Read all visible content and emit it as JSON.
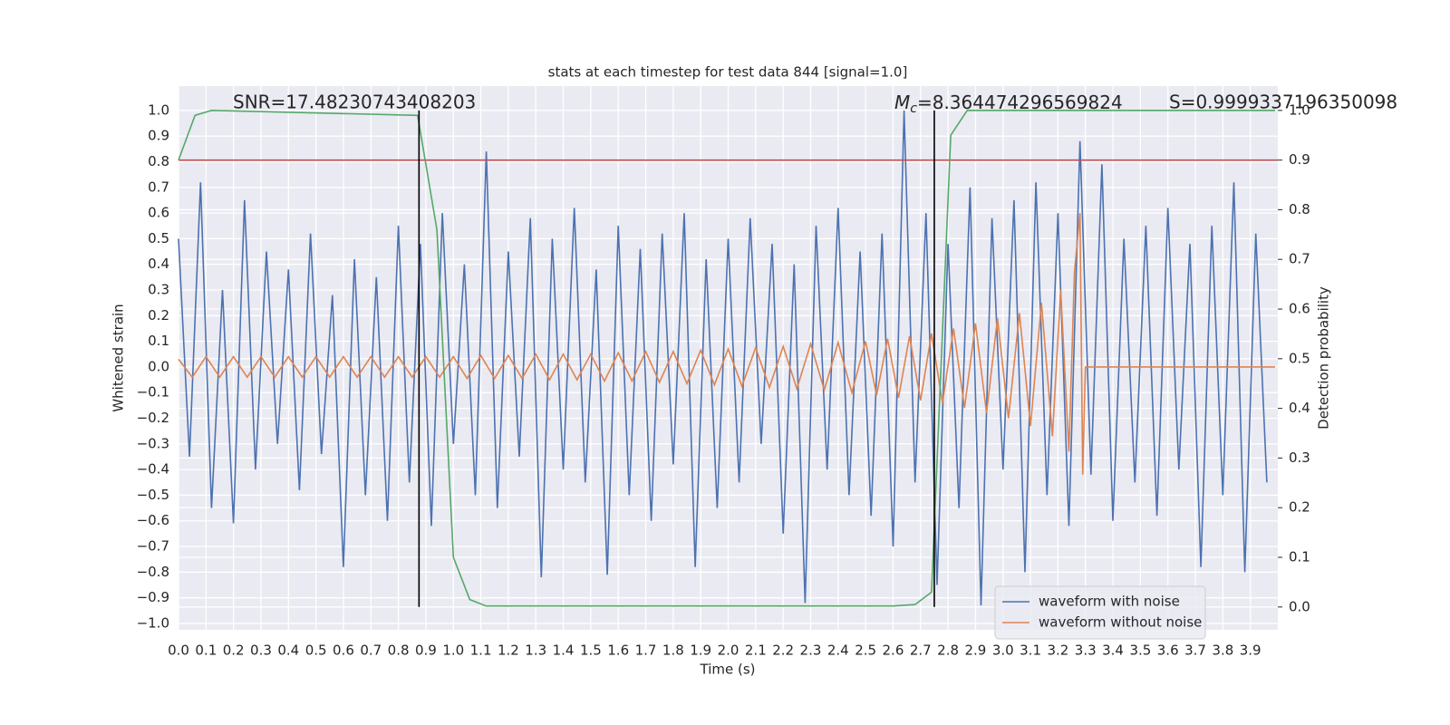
{
  "chart_data": {
    "type": "line",
    "title": "stats at each timestep for test data 844 [signal=1.0]",
    "xlabel": "Time (s)",
    "ylabel": "Whitened strain",
    "y2label": "Detection probability",
    "grid": true,
    "legend": "lower right",
    "xlim": [
      0,
      4.0
    ],
    "ylim": [
      -1.025,
      1.095
    ],
    "y2lim": [
      -0.046,
      1.049
    ],
    "xticks": [
      {
        "value": 0,
        "label": "0.0"
      },
      {
        "value": 0.1,
        "label": "0.1"
      },
      {
        "value": 0.2,
        "label": "0.2"
      },
      {
        "value": 0.3,
        "label": "0.3"
      },
      {
        "value": 0.4,
        "label": "0.4"
      },
      {
        "value": 0.5,
        "label": "0.5"
      },
      {
        "value": 0.6,
        "label": "0.6"
      },
      {
        "value": 0.7,
        "label": "0.7"
      },
      {
        "value": 0.8,
        "label": "0.8"
      },
      {
        "value": 0.9,
        "label": "0.9"
      },
      {
        "value": 1,
        "label": "1.0"
      },
      {
        "value": 1.1,
        "label": "1.1"
      },
      {
        "value": 1.2,
        "label": "1.2"
      },
      {
        "value": 1.3,
        "label": "1.3"
      },
      {
        "value": 1.4,
        "label": "1.4"
      },
      {
        "value": 1.5,
        "label": "1.5"
      },
      {
        "value": 1.6,
        "label": "1.6"
      },
      {
        "value": 1.7,
        "label": "1.7"
      },
      {
        "value": 1.8,
        "label": "1.8"
      },
      {
        "value": 1.9,
        "label": "1.9"
      },
      {
        "value": 2,
        "label": "2.0"
      },
      {
        "value": 2.1,
        "label": "2.1"
      },
      {
        "value": 2.2,
        "label": "2.2"
      },
      {
        "value": 2.3,
        "label": "2.3"
      },
      {
        "value": 2.4,
        "label": "2.4"
      },
      {
        "value": 2.5,
        "label": "2.5"
      },
      {
        "value": 2.6,
        "label": "2.6"
      },
      {
        "value": 2.7,
        "label": "2.7"
      },
      {
        "value": 2.8,
        "label": "2.8"
      },
      {
        "value": 2.9,
        "label": "2.9"
      },
      {
        "value": 3,
        "label": "3.0"
      },
      {
        "value": 3.1,
        "label": "3.1"
      },
      {
        "value": 3.2,
        "label": "3.2"
      },
      {
        "value": 3.3,
        "label": "3.3"
      },
      {
        "value": 3.4,
        "label": "3.4"
      },
      {
        "value": 3.5,
        "label": "3.5"
      },
      {
        "value": 3.6,
        "label": "3.6"
      },
      {
        "value": 3.7,
        "label": "3.7"
      },
      {
        "value": 3.8,
        "label": "3.8"
      },
      {
        "value": 3.9,
        "label": "3.9"
      }
    ],
    "yticks": [
      {
        "value": 1,
        "label": "1.0"
      },
      {
        "value": 0.9,
        "label": "0.9"
      },
      {
        "value": 0.8,
        "label": "0.8"
      },
      {
        "value": 0.7,
        "label": "0.7"
      },
      {
        "value": 0.6,
        "label": "0.6"
      },
      {
        "value": 0.5,
        "label": "0.5"
      },
      {
        "value": 0.4,
        "label": "0.4"
      },
      {
        "value": 0.3,
        "label": "0.3"
      },
      {
        "value": 0.2,
        "label": "0.2"
      },
      {
        "value": 0.1,
        "label": "0.1"
      },
      {
        "value": 0,
        "label": "0.0"
      },
      {
        "value": -0.1,
        "label": "−0.1"
      },
      {
        "value": -0.2,
        "label": "−0.2"
      },
      {
        "value": -0.3,
        "label": "−0.3"
      },
      {
        "value": -0.4,
        "label": "−0.4"
      },
      {
        "value": -0.5,
        "label": "−0.5"
      },
      {
        "value": -0.6,
        "label": "−0.6"
      },
      {
        "value": -0.7,
        "label": "−0.7"
      },
      {
        "value": -0.8,
        "label": "−0.8"
      },
      {
        "value": -0.9,
        "label": "−0.9"
      },
      {
        "value": -1,
        "label": "−1.0"
      }
    ],
    "y2ticks": [
      {
        "value": 1,
        "label": "1.0"
      },
      {
        "value": 0.9,
        "label": "0.9"
      },
      {
        "value": 0.8,
        "label": "0.8"
      },
      {
        "value": 0.7,
        "label": "0.7"
      },
      {
        "value": 0.6,
        "label": "0.6"
      },
      {
        "value": 0.5,
        "label": "0.5"
      },
      {
        "value": 0.4,
        "label": "0.4"
      },
      {
        "value": 0.3,
        "label": "0.3"
      },
      {
        "value": 0.2,
        "label": "0.2"
      },
      {
        "value": 0.1,
        "label": "0.1"
      },
      {
        "value": 0,
        "label": "0.0"
      }
    ],
    "annotations": {
      "snr": "SNR=17.48230743408203",
      "mc_symbol": "M",
      "mc_subscript": "c",
      "mc_value": "=8.364474296569824",
      "s": "S=0.9999337196350098"
    },
    "series": [
      {
        "name": "waveform with noise",
        "color": "#4c72b0",
        "x": [
          0,
          0.04,
          0.08,
          0.12,
          0.16,
          0.2,
          0.24,
          0.28,
          0.32,
          0.36,
          0.4,
          0.44,
          0.48,
          0.52,
          0.56,
          0.6,
          0.64,
          0.68,
          0.72,
          0.76,
          0.8,
          0.84,
          0.88,
          0.92,
          0.96,
          1,
          1.04,
          1.08,
          1.12,
          1.16,
          1.2,
          1.24,
          1.28,
          1.32,
          1.36,
          1.4,
          1.44,
          1.48,
          1.52,
          1.56,
          1.6,
          1.64,
          1.68,
          1.72,
          1.76,
          1.8,
          1.84,
          1.88,
          1.92,
          1.96,
          2,
          2.04,
          2.08,
          2.12,
          2.16,
          2.2,
          2.24,
          2.28,
          2.32,
          2.36,
          2.4,
          2.44,
          2.48,
          2.52,
          2.56,
          2.6,
          2.64,
          2.68,
          2.72,
          2.76,
          2.8,
          2.84,
          2.88,
          2.92,
          2.96,
          3,
          3.04,
          3.08,
          3.12,
          3.16,
          3.2,
          3.24,
          3.28,
          3.32,
          3.36,
          3.4,
          3.44,
          3.48,
          3.52,
          3.56,
          3.6,
          3.64,
          3.68,
          3.72,
          3.76,
          3.8,
          3.84,
          3.88,
          3.92,
          3.96
        ],
        "values": [
          0.5,
          -0.35,
          0.72,
          -0.55,
          0.3,
          -0.61,
          0.65,
          -0.4,
          0.45,
          -0.3,
          0.38,
          -0.48,
          0.52,
          -0.34,
          0.28,
          -0.78,
          0.42,
          -0.5,
          0.35,
          -0.6,
          0.55,
          -0.45,
          0.48,
          -0.62,
          0.6,
          -0.3,
          0.4,
          -0.5,
          0.84,
          -0.55,
          0.45,
          -0.35,
          0.58,
          -0.82,
          0.5,
          -0.4,
          0.62,
          -0.45,
          0.38,
          -0.81,
          0.55,
          -0.5,
          0.46,
          -0.6,
          0.52,
          -0.38,
          0.6,
          -0.78,
          0.42,
          -0.55,
          0.5,
          -0.45,
          0.58,
          -0.3,
          0.48,
          -0.65,
          0.4,
          -0.92,
          0.55,
          -0.4,
          0.62,
          -0.5,
          0.45,
          -0.58,
          0.52,
          -0.7,
          1.0,
          -0.45,
          0.6,
          -0.85,
          0.48,
          -0.55,
          0.7,
          -0.93,
          0.58,
          -0.4,
          0.65,
          -0.8,
          0.72,
          -0.5,
          0.6,
          -0.62,
          0.88,
          -0.42,
          0.79,
          -0.6,
          0.5,
          -0.45,
          0.55,
          -0.58,
          0.62,
          -0.4,
          0.48,
          -0.78,
          0.55,
          -0.5,
          0.72,
          -0.8,
          0.52,
          -0.45
        ]
      },
      {
        "name": "waveform without noise",
        "color": "#dd8452",
        "x": [
          0,
          0.05,
          0.1,
          0.15,
          0.2,
          0.25,
          0.3,
          0.35,
          0.4,
          0.45,
          0.5,
          0.55,
          0.6,
          0.65,
          0.7,
          0.75,
          0.8,
          0.85,
          0.9,
          0.95,
          1,
          1.05,
          1.1,
          1.15,
          1.2,
          1.25,
          1.3,
          1.35,
          1.4,
          1.45,
          1.5,
          1.55,
          1.6,
          1.65,
          1.7,
          1.75,
          1.8,
          1.85,
          1.9,
          1.95,
          2,
          2.05,
          2.1,
          2.15,
          2.2,
          2.25,
          2.3,
          2.35,
          2.4,
          2.45,
          2.5,
          2.54,
          2.58,
          2.62,
          2.66,
          2.7,
          2.74,
          2.78,
          2.82,
          2.86,
          2.9,
          2.94,
          2.98,
          3.02,
          3.06,
          3.1,
          3.14,
          3.18,
          3.21,
          3.24,
          3.26,
          3.28,
          3.29,
          3.3,
          3.99
        ],
        "values": [
          0.03,
          -0.04,
          0.04,
          -0.04,
          0.04,
          -0.04,
          0.04,
          -0.04,
          0.04,
          -0.04,
          0.04,
          -0.04,
          0.04,
          -0.04,
          0.04,
          -0.04,
          0.04,
          -0.04,
          0.04,
          -0.04,
          0.04,
          -0.045,
          0.045,
          -0.045,
          0.045,
          -0.045,
          0.05,
          -0.05,
          0.05,
          -0.05,
          0.05,
          -0.055,
          0.055,
          -0.055,
          0.06,
          -0.06,
          0.06,
          -0.065,
          0.065,
          -0.07,
          0.07,
          -0.075,
          0.075,
          -0.08,
          0.08,
          -0.085,
          0.09,
          -0.09,
          0.095,
          -0.1,
          0.1,
          -0.11,
          0.11,
          -0.12,
          0.12,
          -0.13,
          0.13,
          -0.14,
          0.15,
          -0.16,
          0.17,
          -0.18,
          0.19,
          -0.2,
          0.21,
          -0.23,
          0.25,
          -0.27,
          0.3,
          -0.33,
          0.37,
          0.6,
          -0.42,
          0.0,
          0.0
        ]
      }
    ],
    "detection": {
      "axis": "y2",
      "color": "#55a868",
      "x": [
        0,
        0.06,
        0.12,
        0.87,
        0.94,
        1.0,
        1.06,
        1.12,
        2.6,
        2.68,
        2.74,
        2.81,
        2.87,
        3.99
      ],
      "values": [
        0.9,
        0.99,
        1.0,
        0.99,
        0.76,
        0.1,
        0.015,
        0.002,
        0.002,
        0.005,
        0.03,
        0.95,
        1.0,
        1.0
      ]
    },
    "threshold": {
      "axis": "y2",
      "value": 0.9,
      "color": "#c44e52"
    },
    "vlines": {
      "x": [
        0.875,
        2.75
      ],
      "y2range": [
        0,
        1
      ],
      "color": "#000000"
    }
  }
}
